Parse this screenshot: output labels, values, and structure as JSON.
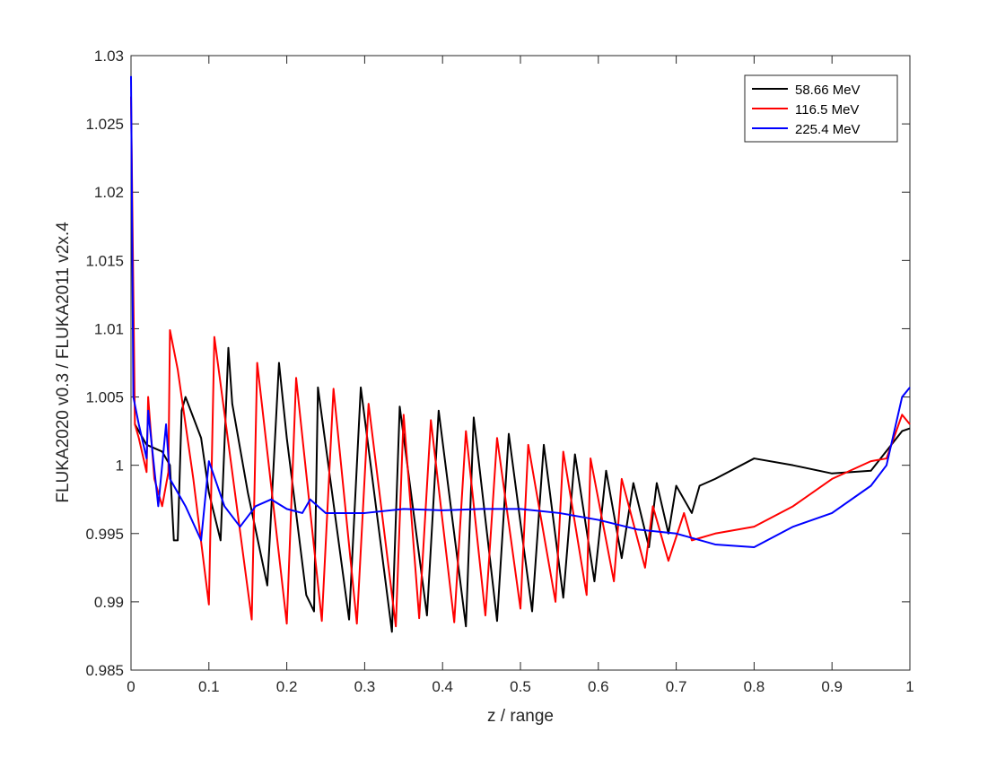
{
  "chart_data": {
    "type": "line",
    "xlabel": "z / range",
    "ylabel": "FLUKA2020 v0.3 / FLUKA2011 v2x.4",
    "xlim": [
      0,
      1
    ],
    "xticks": [
      0,
      0.1,
      0.2,
      0.3,
      0.4,
      0.5,
      0.6,
      0.7,
      0.8,
      0.9,
      1
    ],
    "ylim": [
      0.985,
      1.03
    ],
    "yticks": [
      0.985,
      0.99,
      0.995,
      1,
      1.005,
      1.01,
      1.015,
      1.02,
      1.025,
      1.03
    ],
    "grid": false,
    "legend": "top-right",
    "series": [
      {
        "name": "58.66 MeV",
        "color": "#000000",
        "x": [
          0.005,
          0.02,
          0.04,
          0.05,
          0.055,
          0.06,
          0.065,
          0.07,
          0.09,
          0.1,
          0.115,
          0.125,
          0.13,
          0.15,
          0.175,
          0.19,
          0.2,
          0.225,
          0.235,
          0.24,
          0.28,
          0.295,
          0.335,
          0.345,
          0.38,
          0.395,
          0.43,
          0.44,
          0.47,
          0.485,
          0.515,
          0.53,
          0.555,
          0.57,
          0.595,
          0.61,
          0.63,
          0.645,
          0.665,
          0.675,
          0.69,
          0.7,
          0.72,
          0.73,
          0.75,
          0.8,
          0.85,
          0.9,
          0.95,
          0.99,
          1
        ],
        "values": [
          1.003,
          1.0015,
          1.001,
          1.0,
          0.9945,
          0.9945,
          1.004,
          1.005,
          1.002,
          0.998,
          0.9945,
          1.0086,
          1.0045,
          0.998,
          0.9912,
          1.0075,
          1.002,
          0.9905,
          0.9893,
          1.0057,
          0.9887,
          1.0057,
          0.9878,
          1.0043,
          0.989,
          1.004,
          0.9882,
          1.0035,
          0.9886,
          1.0023,
          0.9893,
          1.0015,
          0.9903,
          1.0008,
          0.9915,
          0.9996,
          0.9932,
          0.9987,
          0.994,
          0.9987,
          0.995,
          0.9985,
          0.9965,
          0.9985,
          0.999,
          1.0005,
          1.0,
          0.9994,
          0.9996,
          1.0025,
          1.0027
        ]
      },
      {
        "name": "116.5 MeV",
        "color": "#ff0000",
        "x": [
          0,
          0.005,
          0.01,
          0.02,
          0.022,
          0.03,
          0.04,
          0.048,
          0.05,
          0.06,
          0.08,
          0.1,
          0.107,
          0.155,
          0.162,
          0.2,
          0.212,
          0.245,
          0.26,
          0.29,
          0.305,
          0.34,
          0.35,
          0.37,
          0.385,
          0.415,
          0.43,
          0.455,
          0.47,
          0.5,
          0.51,
          0.545,
          0.555,
          0.585,
          0.59,
          0.62,
          0.63,
          0.66,
          0.67,
          0.69,
          0.71,
          0.72,
          0.75,
          0.8,
          0.85,
          0.9,
          0.95,
          0.97,
          0.99,
          1
        ],
        "values": [
          1.027,
          1.003,
          1.002,
          0.9995,
          1.005,
          0.999,
          0.997,
          0.9995,
          1.0099,
          1.007,
          0.999,
          0.9898,
          1.0094,
          0.9887,
          1.0075,
          0.9884,
          1.0064,
          0.9886,
          1.0056,
          0.9884,
          1.0045,
          0.9882,
          1.0037,
          0.9888,
          1.0033,
          0.9885,
          1.0025,
          0.989,
          1.002,
          0.9895,
          1.0015,
          0.99,
          1.001,
          0.9905,
          1.0005,
          0.9915,
          0.999,
          0.9925,
          0.997,
          0.993,
          0.9965,
          0.9945,
          0.995,
          0.9955,
          0.997,
          0.999,
          1.0003,
          1.0005,
          1.0037,
          1.003
        ]
      },
      {
        "name": "225.4 MeV",
        "color": "#0000ff",
        "x": [
          0,
          0.003,
          0.01,
          0.02,
          0.022,
          0.035,
          0.045,
          0.05,
          0.07,
          0.09,
          0.1,
          0.12,
          0.14,
          0.16,
          0.18,
          0.2,
          0.22,
          0.23,
          0.25,
          0.3,
          0.35,
          0.4,
          0.45,
          0.5,
          0.55,
          0.6,
          0.65,
          0.7,
          0.75,
          0.8,
          0.85,
          0.9,
          0.95,
          0.97,
          0.99,
          1
        ],
        "values": [
          1.0285,
          1.005,
          1.003,
          1.0005,
          1.004,
          0.997,
          1.003,
          0.999,
          0.997,
          0.9945,
          1.0003,
          0.997,
          0.9955,
          0.997,
          0.9975,
          0.9968,
          0.9965,
          0.9975,
          0.9965,
          0.9965,
          0.9968,
          0.9967,
          0.9968,
          0.9968,
          0.9965,
          0.996,
          0.9953,
          0.995,
          0.9942,
          0.994,
          0.9955,
          0.9965,
          0.9985,
          1.0,
          1.005,
          1.0057
        ]
      }
    ]
  }
}
